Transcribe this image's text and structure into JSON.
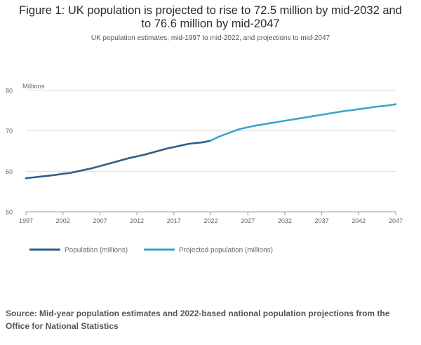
{
  "title_line1": "Figure 1: UK population is projected to rise to 72.5 million by mid-2032 and",
  "title_line2": "to 76.6 million by mid-2047",
  "subtitle": "UK population estimates, mid-1997 to mid-2022, and projections to mid-2047",
  "source": "Source: Mid-year population estimates and 2022-based national population projections from the Office for National Statistics",
  "colors": {
    "population": "#2d5f8a",
    "projected": "#3aa6c9",
    "grid": "#dcdcdc",
    "axis": "#999999",
    "text": "#666666"
  },
  "chart_data": {
    "type": "line",
    "ylabel": "Millions",
    "ylim": [
      50,
      80
    ],
    "xlim": [
      1997,
      2047
    ],
    "y_ticks": [
      50,
      60,
      70,
      80
    ],
    "x_ticks": [
      1997,
      2002,
      2007,
      2012,
      2017,
      2022,
      2027,
      2032,
      2037,
      2042,
      2047
    ],
    "grid": true,
    "legend_position": "bottom",
    "series": [
      {
        "name": "Population (millions)",
        "x": [
          1997,
          1998,
          1999,
          2000,
          2001,
          2002,
          2003,
          2004,
          2005,
          2006,
          2007,
          2008,
          2009,
          2010,
          2011,
          2012,
          2013,
          2014,
          2015,
          2016,
          2017,
          2018,
          2019,
          2020,
          2021,
          2022
        ],
        "values": [
          58.3,
          58.5,
          58.7,
          58.9,
          59.1,
          59.4,
          59.6,
          60.0,
          60.4,
          60.8,
          61.3,
          61.8,
          62.3,
          62.8,
          63.3,
          63.7,
          64.1,
          64.6,
          65.1,
          65.6,
          66.0,
          66.4,
          66.8,
          67.0,
          67.2,
          67.6
        ]
      },
      {
        "name": "Projected population (millions)",
        "x": [
          2022,
          2023,
          2024,
          2025,
          2026,
          2027,
          2028,
          2029,
          2030,
          2031,
          2032,
          2033,
          2034,
          2035,
          2036,
          2037,
          2038,
          2039,
          2040,
          2041,
          2042,
          2043,
          2044,
          2045,
          2046,
          2047
        ],
        "values": [
          67.6,
          68.5,
          69.2,
          69.9,
          70.5,
          70.9,
          71.3,
          71.6,
          71.9,
          72.2,
          72.5,
          72.8,
          73.1,
          73.4,
          73.7,
          74.0,
          74.3,
          74.6,
          74.9,
          75.1,
          75.4,
          75.6,
          75.9,
          76.1,
          76.3,
          76.6
        ]
      }
    ]
  }
}
